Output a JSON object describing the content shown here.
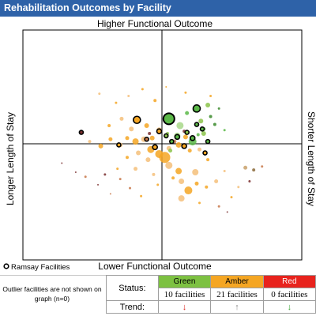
{
  "header": {
    "title": "Rehabilitation Outcomes by Facility"
  },
  "chart_data": {
    "type": "scatter",
    "title": "Rehabilitation Outcomes by Facility",
    "axis_labels": {
      "top": "Higher Functional Outcome",
      "bottom": "Lower Functional Outcome",
      "left": "Longer Length of Stay",
      "right": "Shorter Length of Stay"
    },
    "xlim": [
      -1,
      1
    ],
    "ylim": [
      -1,
      1
    ],
    "grid": false,
    "legend": {
      "label": "Ramsay Facilities",
      "placement": "bottom-left"
    },
    "highlighted_points": [
      {
        "x": 0.05,
        "y": 0.22,
        "r": 7,
        "color": "#5bb848"
      },
      {
        "x": 0.25,
        "y": 0.31,
        "r": 4.5,
        "color": "#5bb848"
      },
      {
        "x": -0.18,
        "y": 0.21,
        "r": 4.5,
        "color": "#f5a623"
      },
      {
        "x": -0.58,
        "y": 0.1,
        "r": 2.5,
        "color": "#7a2f2f"
      },
      {
        "x": -0.02,
        "y": 0.11,
        "r": 3,
        "color": "#f5a623"
      },
      {
        "x": 0.03,
        "y": 0.07,
        "r": 2.5,
        "color": "#8bc34a"
      },
      {
        "x": 0.11,
        "y": 0.06,
        "r": 3,
        "color": "#5bb848"
      },
      {
        "x": 0.22,
        "y": 0.05,
        "r": 3,
        "color": "#5bb848"
      },
      {
        "x": 0.29,
        "y": 0.13,
        "r": 2.5,
        "color": "#5bb848"
      },
      {
        "x": -0.05,
        "y": -0.03,
        "r": 3,
        "color": "#f5a623"
      },
      {
        "x": 0.16,
        "y": -0.02,
        "r": 3,
        "color": "#f5a623"
      },
      {
        "x": 0.31,
        "y": -0.08,
        "r": 2.5,
        "color": "#f5a623"
      },
      {
        "x": 0.25,
        "y": 0.17,
        "r": 2.5,
        "color": "#5bb848"
      },
      {
        "x": 0.33,
        "y": 0.02,
        "r": 2.5,
        "color": "#5bb848"
      },
      {
        "x": -0.31,
        "y": -0.01,
        "r": 2.5,
        "color": "#f5a623"
      },
      {
        "x": -0.11,
        "y": 0.04,
        "r": 2.5,
        "color": "#c8784a"
      },
      {
        "x": 0.07,
        "y": 0.02,
        "r": 2.5,
        "color": "#5bb848"
      },
      {
        "x": 0.18,
        "y": 0.1,
        "r": 2.5,
        "color": "#8bc34a"
      }
    ],
    "points": [
      {
        "x": 0.05,
        "y": 0.22,
        "r": 6,
        "color": "#5bb848"
      },
      {
        "x": 0.13,
        "y": 0.16,
        "r": 4.5,
        "color": "#a8d88a"
      },
      {
        "x": 0.24,
        "y": 0.3,
        "r": 3.5,
        "color": "#5bb848"
      },
      {
        "x": 0.33,
        "y": 0.34,
        "r": 3,
        "color": "#8bc34a"
      },
      {
        "x": 0.28,
        "y": 0.2,
        "r": 3,
        "color": "#8bc34a"
      },
      {
        "x": 0.3,
        "y": 0.09,
        "r": 3,
        "color": "#8bc34a"
      },
      {
        "x": 0.22,
        "y": 0.02,
        "r": 5,
        "color": "#5bb848"
      },
      {
        "x": 0.11,
        "y": 0.07,
        "r": 4,
        "color": "#a8d88a"
      },
      {
        "x": 0.18,
        "y": 0.27,
        "r": 2.5,
        "color": "#5bb848"
      },
      {
        "x": 0.35,
        "y": 0.24,
        "r": 2,
        "color": "#3a8a2a"
      },
      {
        "x": 0.38,
        "y": 0.17,
        "r": 2,
        "color": "#3a8a2a"
      },
      {
        "x": 0.3,
        "y": 0.13,
        "r": 2.5,
        "color": "#5bb848"
      },
      {
        "x": 0.17,
        "y": 0.06,
        "r": 3,
        "color": "#f5a623"
      },
      {
        "x": 0.12,
        "y": -0.01,
        "r": 3.5,
        "color": "#f5a623"
      },
      {
        "x": 0.2,
        "y": -0.06,
        "r": 2.5,
        "color": "#f5a623"
      },
      {
        "x": 0.27,
        "y": -0.05,
        "r": 2.5,
        "color": "#f5c07a"
      },
      {
        "x": 0.05,
        "y": -0.04,
        "r": 3,
        "color": "#f5c07a"
      },
      {
        "x": 0.02,
        "y": -0.12,
        "r": 7,
        "color": "#f5a623"
      },
      {
        "x": 0.05,
        "y": -0.19,
        "r": 4.5,
        "color": "#f5c07a"
      },
      {
        "x": 0.12,
        "y": -0.24,
        "r": 4,
        "color": "#f5a623"
      },
      {
        "x": 0.24,
        "y": -0.25,
        "r": 4,
        "color": "#f5c07a"
      },
      {
        "x": 0.14,
        "y": -0.33,
        "r": 3.5,
        "color": "#f5c07a"
      },
      {
        "x": 0.19,
        "y": -0.41,
        "r": 5,
        "color": "#f5a623"
      },
      {
        "x": 0.14,
        "y": -0.48,
        "r": 4,
        "color": "#f5c07a"
      },
      {
        "x": 0.25,
        "y": -0.35,
        "r": 2.5,
        "color": "#f5a623"
      },
      {
        "x": 0.32,
        "y": -0.38,
        "r": 2,
        "color": "#f5a623"
      },
      {
        "x": 0.39,
        "y": -0.33,
        "r": 2.5,
        "color": "#f5c07a"
      },
      {
        "x": 0.6,
        "y": -0.21,
        "r": 2.5,
        "color": "#c8a06a"
      },
      {
        "x": 0.66,
        "y": -0.23,
        "r": 2,
        "color": "#8b6a3a"
      },
      {
        "x": 0.72,
        "y": -0.2,
        "r": 1.5,
        "color": "#c8784a"
      },
      {
        "x": 0.63,
        "y": -0.33,
        "r": 1.5,
        "color": "#7a2f2f"
      },
      {
        "x": 0.5,
        "y": -0.47,
        "r": 1.5,
        "color": "#f5a623"
      },
      {
        "x": 0.41,
        "y": -0.55,
        "r": 1.5,
        "color": "#c8784a"
      },
      {
        "x": 0.47,
        "y": -0.6,
        "r": 1,
        "color": "#7a2f2f"
      },
      {
        "x": 0.27,
        "y": -0.52,
        "r": 1.5,
        "color": "#f5a623"
      },
      {
        "x": 0.55,
        "y": -0.38,
        "r": 1.5,
        "color": "#f5c07a"
      },
      {
        "x": 0.45,
        "y": 0.12,
        "r": 1.5,
        "color": "#5bb848"
      },
      {
        "x": 0.41,
        "y": 0.31,
        "r": 1.5,
        "color": "#3a8a2a"
      },
      {
        "x": 0.17,
        "y": 0.45,
        "r": 1.5,
        "color": "#f5a623"
      },
      {
        "x": 0.35,
        "y": 0.42,
        "r": 1.5,
        "color": "#f5a623"
      },
      {
        "x": 0.03,
        "y": 0.5,
        "r": 1,
        "color": "#f5a623"
      },
      {
        "x": -0.05,
        "y": 0.38,
        "r": 2,
        "color": "#f5a623"
      },
      {
        "x": -0.14,
        "y": 0.48,
        "r": 1.5,
        "color": "#f5a623"
      },
      {
        "x": -0.24,
        "y": 0.42,
        "r": 1.5,
        "color": "#f5c07a"
      },
      {
        "x": -0.33,
        "y": 0.36,
        "r": 1.5,
        "color": "#f5a623"
      },
      {
        "x": -0.45,
        "y": 0.44,
        "r": 1.5,
        "color": "#f5c07a"
      },
      {
        "x": -0.18,
        "y": 0.21,
        "r": 4,
        "color": "#f5a623"
      },
      {
        "x": -0.22,
        "y": 0.13,
        "r": 3,
        "color": "#f5c07a"
      },
      {
        "x": -0.11,
        "y": 0.16,
        "r": 3,
        "color": "#f5a623"
      },
      {
        "x": -0.02,
        "y": 0.12,
        "r": 3.5,
        "color": "#f5c07a"
      },
      {
        "x": -0.07,
        "y": 0.05,
        "r": 3,
        "color": "#f5a623"
      },
      {
        "x": -0.13,
        "y": 0.04,
        "r": 3.5,
        "color": "#f5c07a"
      },
      {
        "x": -0.19,
        "y": 0.02,
        "r": 4,
        "color": "#f5a623"
      },
      {
        "x": -0.25,
        "y": 0.05,
        "r": 2.5,
        "color": "#f5a623"
      },
      {
        "x": -0.3,
        "y": -0.01,
        "r": 3,
        "color": "#f5c07a"
      },
      {
        "x": -0.37,
        "y": 0.04,
        "r": 2.5,
        "color": "#f5a623"
      },
      {
        "x": -0.44,
        "y": -0.02,
        "r": 3,
        "color": "#f5a623"
      },
      {
        "x": -0.52,
        "y": 0.02,
        "r": 2,
        "color": "#f5c07a"
      },
      {
        "x": -0.29,
        "y": 0.22,
        "r": 2.5,
        "color": "#f5c07a"
      },
      {
        "x": -0.38,
        "y": 0.16,
        "r": 2,
        "color": "#f5a623"
      },
      {
        "x": -0.08,
        "y": -0.05,
        "r": 4.5,
        "color": "#f5a623"
      },
      {
        "x": -0.02,
        "y": -0.09,
        "r": 5,
        "color": "#f5a623"
      },
      {
        "x": -0.1,
        "y": -0.14,
        "r": 3,
        "color": "#f5c07a"
      },
      {
        "x": -0.17,
        "y": -0.08,
        "r": 3,
        "color": "#f5c07a"
      },
      {
        "x": -0.25,
        "y": -0.12,
        "r": 2,
        "color": "#f5a623"
      },
      {
        "x": -0.19,
        "y": -0.22,
        "r": 2.5,
        "color": "#f5c07a"
      },
      {
        "x": -0.32,
        "y": -0.22,
        "r": 1.5,
        "color": "#f5a623"
      },
      {
        "x": -0.3,
        "y": -0.31,
        "r": 1.5,
        "color": "#c8784a"
      },
      {
        "x": -0.41,
        "y": -0.27,
        "r": 1.5,
        "color": "#7a2f2f"
      },
      {
        "x": -0.23,
        "y": -0.39,
        "r": 1.5,
        "color": "#c8784a"
      },
      {
        "x": -0.15,
        "y": -0.46,
        "r": 1.5,
        "color": "#f5a623"
      },
      {
        "x": -0.46,
        "y": -0.36,
        "r": 1,
        "color": "#7a2f2f"
      },
      {
        "x": -0.55,
        "y": -0.29,
        "r": 1.5,
        "color": "#c8784a"
      },
      {
        "x": -0.62,
        "y": -0.25,
        "r": 1,
        "color": "#7a2f2f"
      },
      {
        "x": -0.72,
        "y": -0.17,
        "r": 1,
        "color": "#7a2f2f"
      },
      {
        "x": -0.58,
        "y": 0.1,
        "r": 2,
        "color": "#7a2f2f"
      },
      {
        "x": -0.37,
        "y": -0.44,
        "r": 1,
        "color": "#c8784a"
      },
      {
        "x": -0.06,
        "y": -0.27,
        "r": 2,
        "color": "#f5c07a"
      },
      {
        "x": -0.03,
        "y": -0.36,
        "r": 1.5,
        "color": "#f5a623"
      },
      {
        "x": 0.06,
        "y": -0.06,
        "r": 2.5,
        "color": "#8bc34a"
      },
      {
        "x": 0.09,
        "y": 0.02,
        "r": 2.5,
        "color": "#c8784a"
      },
      {
        "x": 0.04,
        "y": 0.09,
        "r": 2,
        "color": "#8bc34a"
      },
      {
        "x": 0.16,
        "y": 0.11,
        "r": 2,
        "color": "#7a2f2f"
      },
      {
        "x": 0.26,
        "y": 0.08,
        "r": 2,
        "color": "#5bb848"
      },
      {
        "x": -0.09,
        "y": 0.09,
        "r": 2,
        "color": "#7a2f2f"
      },
      {
        "x": 0.33,
        "y": -0.14,
        "r": 2,
        "color": "#f5a623"
      },
      {
        "x": 0.08,
        "y": -0.3,
        "r": 2,
        "color": "#f5a623"
      },
      {
        "x": 0.45,
        "y": -0.24,
        "r": 1.5,
        "color": "#f5c07a"
      }
    ]
  },
  "legend_label": "Ramsay Facilities",
  "outlier_note": "Outlier facilities are not shown on graph (n=0)",
  "status_table": {
    "status_label": "Status:",
    "trend_label": "Trend:",
    "columns": [
      {
        "name": "Green",
        "count": "10 facilities",
        "trend_arrow": "↓",
        "trend_color": "#d9221c",
        "header_color": "#7dc142"
      },
      {
        "name": "Amber",
        "count": "21 facilities",
        "trend_arrow": "↑",
        "trend_color": "#8a8a8a",
        "header_color": "#f5a623"
      },
      {
        "name": "Red",
        "count": "0 facilities",
        "trend_arrow": "↓",
        "trend_color": "#3aa635",
        "header_color": "#e8231d"
      }
    ]
  }
}
